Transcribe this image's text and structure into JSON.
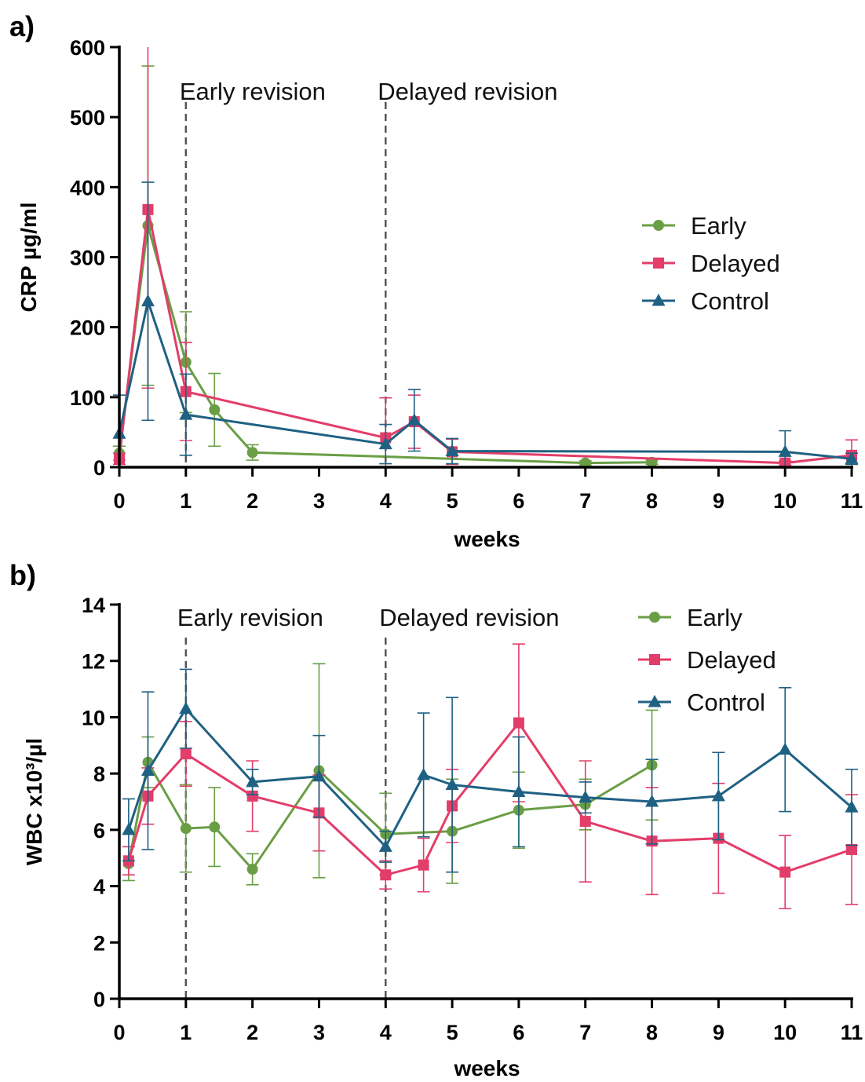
{
  "colors": {
    "early": "#6a9e45",
    "delayed": "#e33d6a",
    "control": "#1f6183",
    "axis": "#000000",
    "annotation_line": "#555555"
  },
  "chart_data": [
    {
      "panel_label": "a)",
      "type": "line",
      "xlabel": "weeks",
      "ylabel": "CRP µg/ml",
      "xlim": [
        0,
        11
      ],
      "ylim": [
        0,
        600
      ],
      "xticks": [
        0,
        1,
        2,
        3,
        4,
        5,
        6,
        7,
        8,
        9,
        10,
        11
      ],
      "yticks": [
        0,
        100,
        200,
        300,
        400,
        500,
        600
      ],
      "grid": false,
      "legend_position": "right-middle",
      "annotations": [
        {
          "x": 1,
          "text": "Early revision"
        },
        {
          "x": 4,
          "text": "Delayed revision"
        }
      ],
      "series": [
        {
          "name": "Early",
          "marker": "circle",
          "color_key": "early",
          "x": [
            0,
            0.43,
            1,
            1.43,
            2,
            7,
            8
          ],
          "y": [
            20,
            345,
            150,
            82,
            21,
            6,
            7
          ],
          "err": [
            10,
            228,
            72,
            52,
            11,
            3,
            3
          ]
        },
        {
          "name": "Delayed",
          "marker": "square",
          "color_key": "delayed",
          "x": [
            0,
            0.43,
            1,
            4,
            4.43,
            5,
            10,
            11
          ],
          "y": [
            12,
            368,
            108,
            42,
            65,
            22,
            6,
            17
          ],
          "err": [
            8,
            255,
            70,
            57,
            38,
            18,
            3,
            22
          ]
        },
        {
          "name": "Control",
          "marker": "triangle",
          "color_key": "control",
          "x": [
            0,
            0.43,
            1,
            4,
            4.43,
            5,
            10,
            11
          ],
          "y": [
            48,
            237,
            75,
            33,
            67,
            23,
            22,
            12
          ],
          "err": [
            55,
            170,
            58,
            28,
            44,
            18,
            30,
            8
          ]
        }
      ]
    },
    {
      "panel_label": "b)",
      "type": "line",
      "xlabel": "weeks",
      "ylabel": "WBC x10³/µl",
      "xlim": [
        0,
        11
      ],
      "ylim": [
        0,
        14
      ],
      "xticks": [
        0,
        1,
        2,
        3,
        4,
        5,
        6,
        7,
        8,
        9,
        10,
        11
      ],
      "yticks": [
        0,
        2,
        4,
        6,
        8,
        10,
        12,
        14
      ],
      "grid": false,
      "legend_position": "top-right",
      "annotations": [
        {
          "x": 1,
          "text": "Early revision"
        },
        {
          "x": 4,
          "text": "Delayed revision"
        }
      ],
      "series": [
        {
          "name": "Early",
          "marker": "circle",
          "color_key": "early",
          "x": [
            0.14,
            0.43,
            1,
            1.43,
            2,
            3,
            4,
            5,
            6,
            7,
            8
          ],
          "y": [
            4.8,
            8.4,
            6.05,
            6.1,
            4.6,
            8.1,
            5.85,
            5.95,
            6.7,
            6.9,
            8.3
          ],
          "err": [
            0.6,
            0.9,
            1.55,
            1.4,
            0.55,
            3.8,
            1.45,
            1.85,
            1.35,
            0.9,
            1.95
          ]
        },
        {
          "name": "Delayed",
          "marker": "square",
          "color_key": "delayed",
          "x": [
            0.14,
            0.43,
            1,
            2,
            3,
            4,
            4.57,
            5,
            6,
            7,
            8,
            9,
            10,
            11
          ],
          "y": [
            4.9,
            7.2,
            8.7,
            7.2,
            6.6,
            4.4,
            4.75,
            6.85,
            9.8,
            6.3,
            5.6,
            5.7,
            4.5,
            5.3
          ],
          "err": [
            0.5,
            1.0,
            1.15,
            1.25,
            1.35,
            0.5,
            0.95,
            1.3,
            2.8,
            2.15,
            1.9,
            1.95,
            1.3,
            1.95
          ]
        },
        {
          "name": "Control",
          "marker": "triangle",
          "color_key": "control",
          "x": [
            0.14,
            0.43,
            1,
            2,
            3,
            4,
            4.57,
            5,
            6,
            7,
            8,
            9,
            10,
            11
          ],
          "y": [
            6.0,
            8.1,
            10.3,
            7.7,
            7.9,
            5.4,
            7.95,
            7.6,
            7.35,
            7.15,
            7.0,
            7.2,
            8.85,
            6.8
          ],
          "err": [
            1.1,
            2.8,
            1.4,
            0.45,
            1.45,
            0.55,
            2.2,
            3.1,
            1.95,
            0.55,
            1.5,
            1.55,
            2.2,
            1.35
          ]
        }
      ]
    }
  ]
}
